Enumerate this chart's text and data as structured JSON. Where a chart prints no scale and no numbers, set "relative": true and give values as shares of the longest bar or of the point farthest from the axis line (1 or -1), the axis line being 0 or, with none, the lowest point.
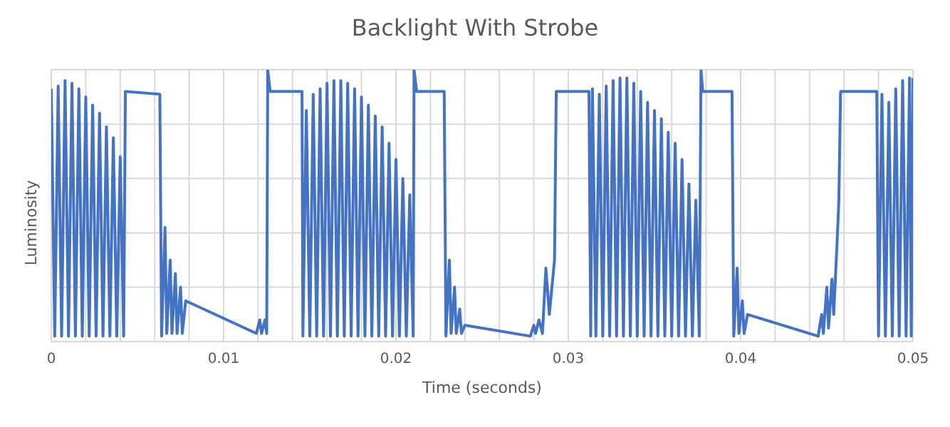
{
  "chart_data": {
    "type": "line",
    "title": "Backlight With Strobe",
    "xlabel": "Time (seconds)",
    "ylabel": "Luminosity",
    "relative": true,
    "grid": true,
    "legend": false,
    "marker": "none",
    "line_style": "solid",
    "xlim": [
      0,
      0.05
    ],
    "xticks": [
      0,
      {
        "value": 0.002,
        "label": null
      },
      {
        "value": 0.004,
        "label": null
      },
      {
        "value": 0.006,
        "label": null
      },
      {
        "value": 0.008,
        "label": null
      },
      0.01,
      {
        "value": 0.012,
        "label": null
      },
      {
        "value": 0.014,
        "label": null
      },
      {
        "value": 0.016,
        "label": null
      },
      {
        "value": 0.018,
        "label": null
      },
      0.02,
      {
        "value": 0.022,
        "label": null
      },
      {
        "value": 0.024,
        "label": null
      },
      {
        "value": 0.026,
        "label": null
      },
      {
        "value": 0.028,
        "label": null
      },
      0.03,
      {
        "value": 0.032,
        "label": null
      },
      {
        "value": 0.034,
        "label": null
      },
      {
        "value": 0.036,
        "label": null
      },
      {
        "value": 0.038,
        "label": null
      },
      0.04,
      {
        "value": 0.042,
        "label": null
      },
      {
        "value": 0.044,
        "label": null
      },
      {
        "value": 0.046,
        "label": null
      },
      {
        "value": 0.048,
        "label": null
      },
      0.05
    ],
    "series": [
      {
        "color": "#4472c4",
        "x": [
          0,
          0.0002,
          0.0004,
          0.0006,
          0.0008,
          0.001,
          0.0012,
          0.0014,
          0.0016,
          0.0018,
          0.002,
          0.0022,
          0.0024,
          0.0026,
          0.0028,
          0.003,
          0.0032,
          0.0034,
          0.0036,
          0.0038,
          0.004,
          0.0042,
          0.0043,
          0.0063,
          0.0064,
          0.0066,
          0.0067,
          0.0069,
          0.007,
          0.0072,
          0.0073,
          0.0075,
          0.0076,
          0.0078,
          0.0119,
          0.0121,
          0.0122,
          0.0124,
          0.0125,
          0.01256,
          0.0127,
          0.01455,
          0.0146,
          0.0148,
          0.015,
          0.0152,
          0.0154,
          0.0156,
          0.0158,
          0.016,
          0.0162,
          0.0164,
          0.0166,
          0.0168,
          0.017,
          0.0172,
          0.0174,
          0.0176,
          0.0178,
          0.018,
          0.0182,
          0.0184,
          0.0186,
          0.0188,
          0.019,
          0.0192,
          0.0194,
          0.0196,
          0.0198,
          0.02,
          0.0202,
          0.0204,
          0.0206,
          0.0208,
          0.021,
          0.02105,
          0.0212,
          0.0228,
          0.0229,
          0.0231,
          0.0232,
          0.0234,
          0.0235,
          0.0237,
          0.0238,
          0.024,
          0.0278,
          0.028,
          0.0281,
          0.0283,
          0.0285,
          0.0287,
          0.0289,
          0.0292,
          0.0293,
          0.0312,
          0.0313,
          0.0314,
          0.0316,
          0.0318,
          0.032,
          0.0322,
          0.0324,
          0.0326,
          0.0328,
          0.033,
          0.0332,
          0.0334,
          0.0336,
          0.0338,
          0.034,
          0.0342,
          0.0344,
          0.0346,
          0.0348,
          0.035,
          0.0352,
          0.0354,
          0.0356,
          0.0358,
          0.036,
          0.0362,
          0.0364,
          0.0366,
          0.0368,
          0.037,
          0.0372,
          0.0374,
          0.0376,
          0.0377,
          0.0378,
          0.0395,
          0.0396,
          0.0398,
          0.0399,
          0.0401,
          0.0402,
          0.0404,
          0.0445,
          0.0447,
          0.0448,
          0.045,
          0.0451,
          0.0453,
          0.0454,
          0.0456,
          0.0457,
          0.0458,
          0.0479,
          0.048,
          0.0482,
          0.0484,
          0.0486,
          0.0488,
          0.049,
          0.0492,
          0.0494,
          0.0496,
          0.0498,
          0.0499,
          0.05
        ],
        "values": [
          0.93,
          0.02,
          0.94,
          0.02,
          0.96,
          0.02,
          0.95,
          0.02,
          0.93,
          0.02,
          0.9,
          0.02,
          0.87,
          0.02,
          0.84,
          0.02,
          0.79,
          0.02,
          0.75,
          0.02,
          0.68,
          0.02,
          0.92,
          0.91,
          0.02,
          0.42,
          0.03,
          0.3,
          0.03,
          0.25,
          0.03,
          0.2,
          0.03,
          0.15,
          0.03,
          0.08,
          0.03,
          0.08,
          0.03,
          1,
          0.92,
          0.92,
          0.02,
          0.85,
          0.02,
          0.91,
          0.02,
          0.93,
          0.02,
          0.95,
          0.02,
          0.96,
          0.02,
          0.96,
          0.02,
          0.95,
          0.02,
          0.93,
          0.02,
          0.9,
          0.02,
          0.87,
          0.02,
          0.83,
          0.02,
          0.79,
          0.02,
          0.73,
          0.02,
          0.67,
          0.02,
          0.6,
          0.02,
          0.54,
          0.02,
          1,
          0.92,
          0.92,
          0.02,
          0.3,
          0.03,
          0.2,
          0.03,
          0.12,
          0.03,
          0.06,
          0.02,
          0.06,
          0.03,
          0.08,
          0.03,
          0.27,
          0.1,
          0.3,
          0.92,
          0.92,
          0.02,
          0.93,
          0.02,
          0.91,
          0.02,
          0.94,
          0.02,
          0.96,
          0.02,
          0.97,
          0.02,
          0.97,
          0.02,
          0.95,
          0.02,
          0.92,
          0.02,
          0.88,
          0.02,
          0.85,
          0.02,
          0.82,
          0.02,
          0.77,
          0.02,
          0.73,
          0.02,
          0.67,
          0.02,
          0.58,
          0.02,
          0.52,
          0.02,
          1,
          0.92,
          0.92,
          0.02,
          0.27,
          0.03,
          0.15,
          0.03,
          0.1,
          0.02,
          0.1,
          0.03,
          0.2,
          0.05,
          0.23,
          0.1,
          0.37,
          0.52,
          0.92,
          0.92,
          0.02,
          0.91,
          0.02,
          0.88,
          0.02,
          0.93,
          0.02,
          0.96,
          0.02,
          0.97,
          0.02,
          0.97
        ]
      }
    ]
  }
}
